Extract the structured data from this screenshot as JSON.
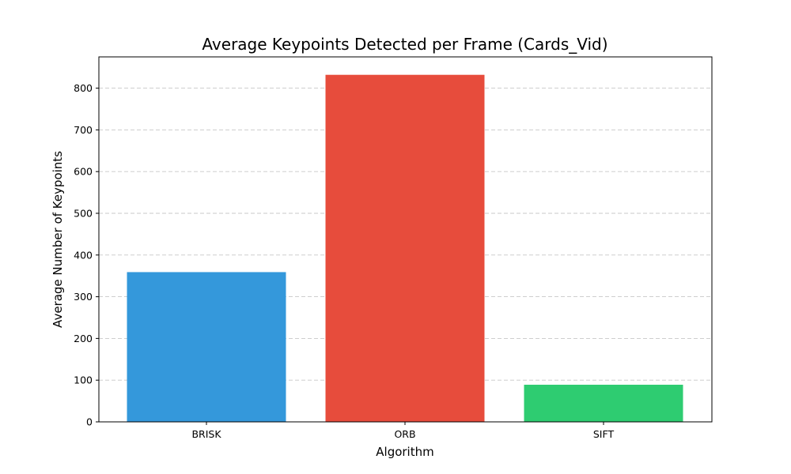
{
  "chart_data": {
    "type": "bar",
    "title": "Average Keypoints Detected per Frame (Cards_Vid)",
    "xlabel": "Algorithm",
    "ylabel": "Average Number of Keypoints",
    "categories": [
      "BRISK",
      "ORB",
      "SIFT"
    ],
    "values": [
      359,
      832,
      89
    ],
    "colors": [
      "#3498db",
      "#e74c3c",
      "#2ecc71"
    ],
    "ylim": [
      0,
      875
    ],
    "yticks": [
      0,
      100,
      200,
      300,
      400,
      500,
      600,
      700,
      800
    ],
    "grid": "y-dashed",
    "legend": "none"
  }
}
